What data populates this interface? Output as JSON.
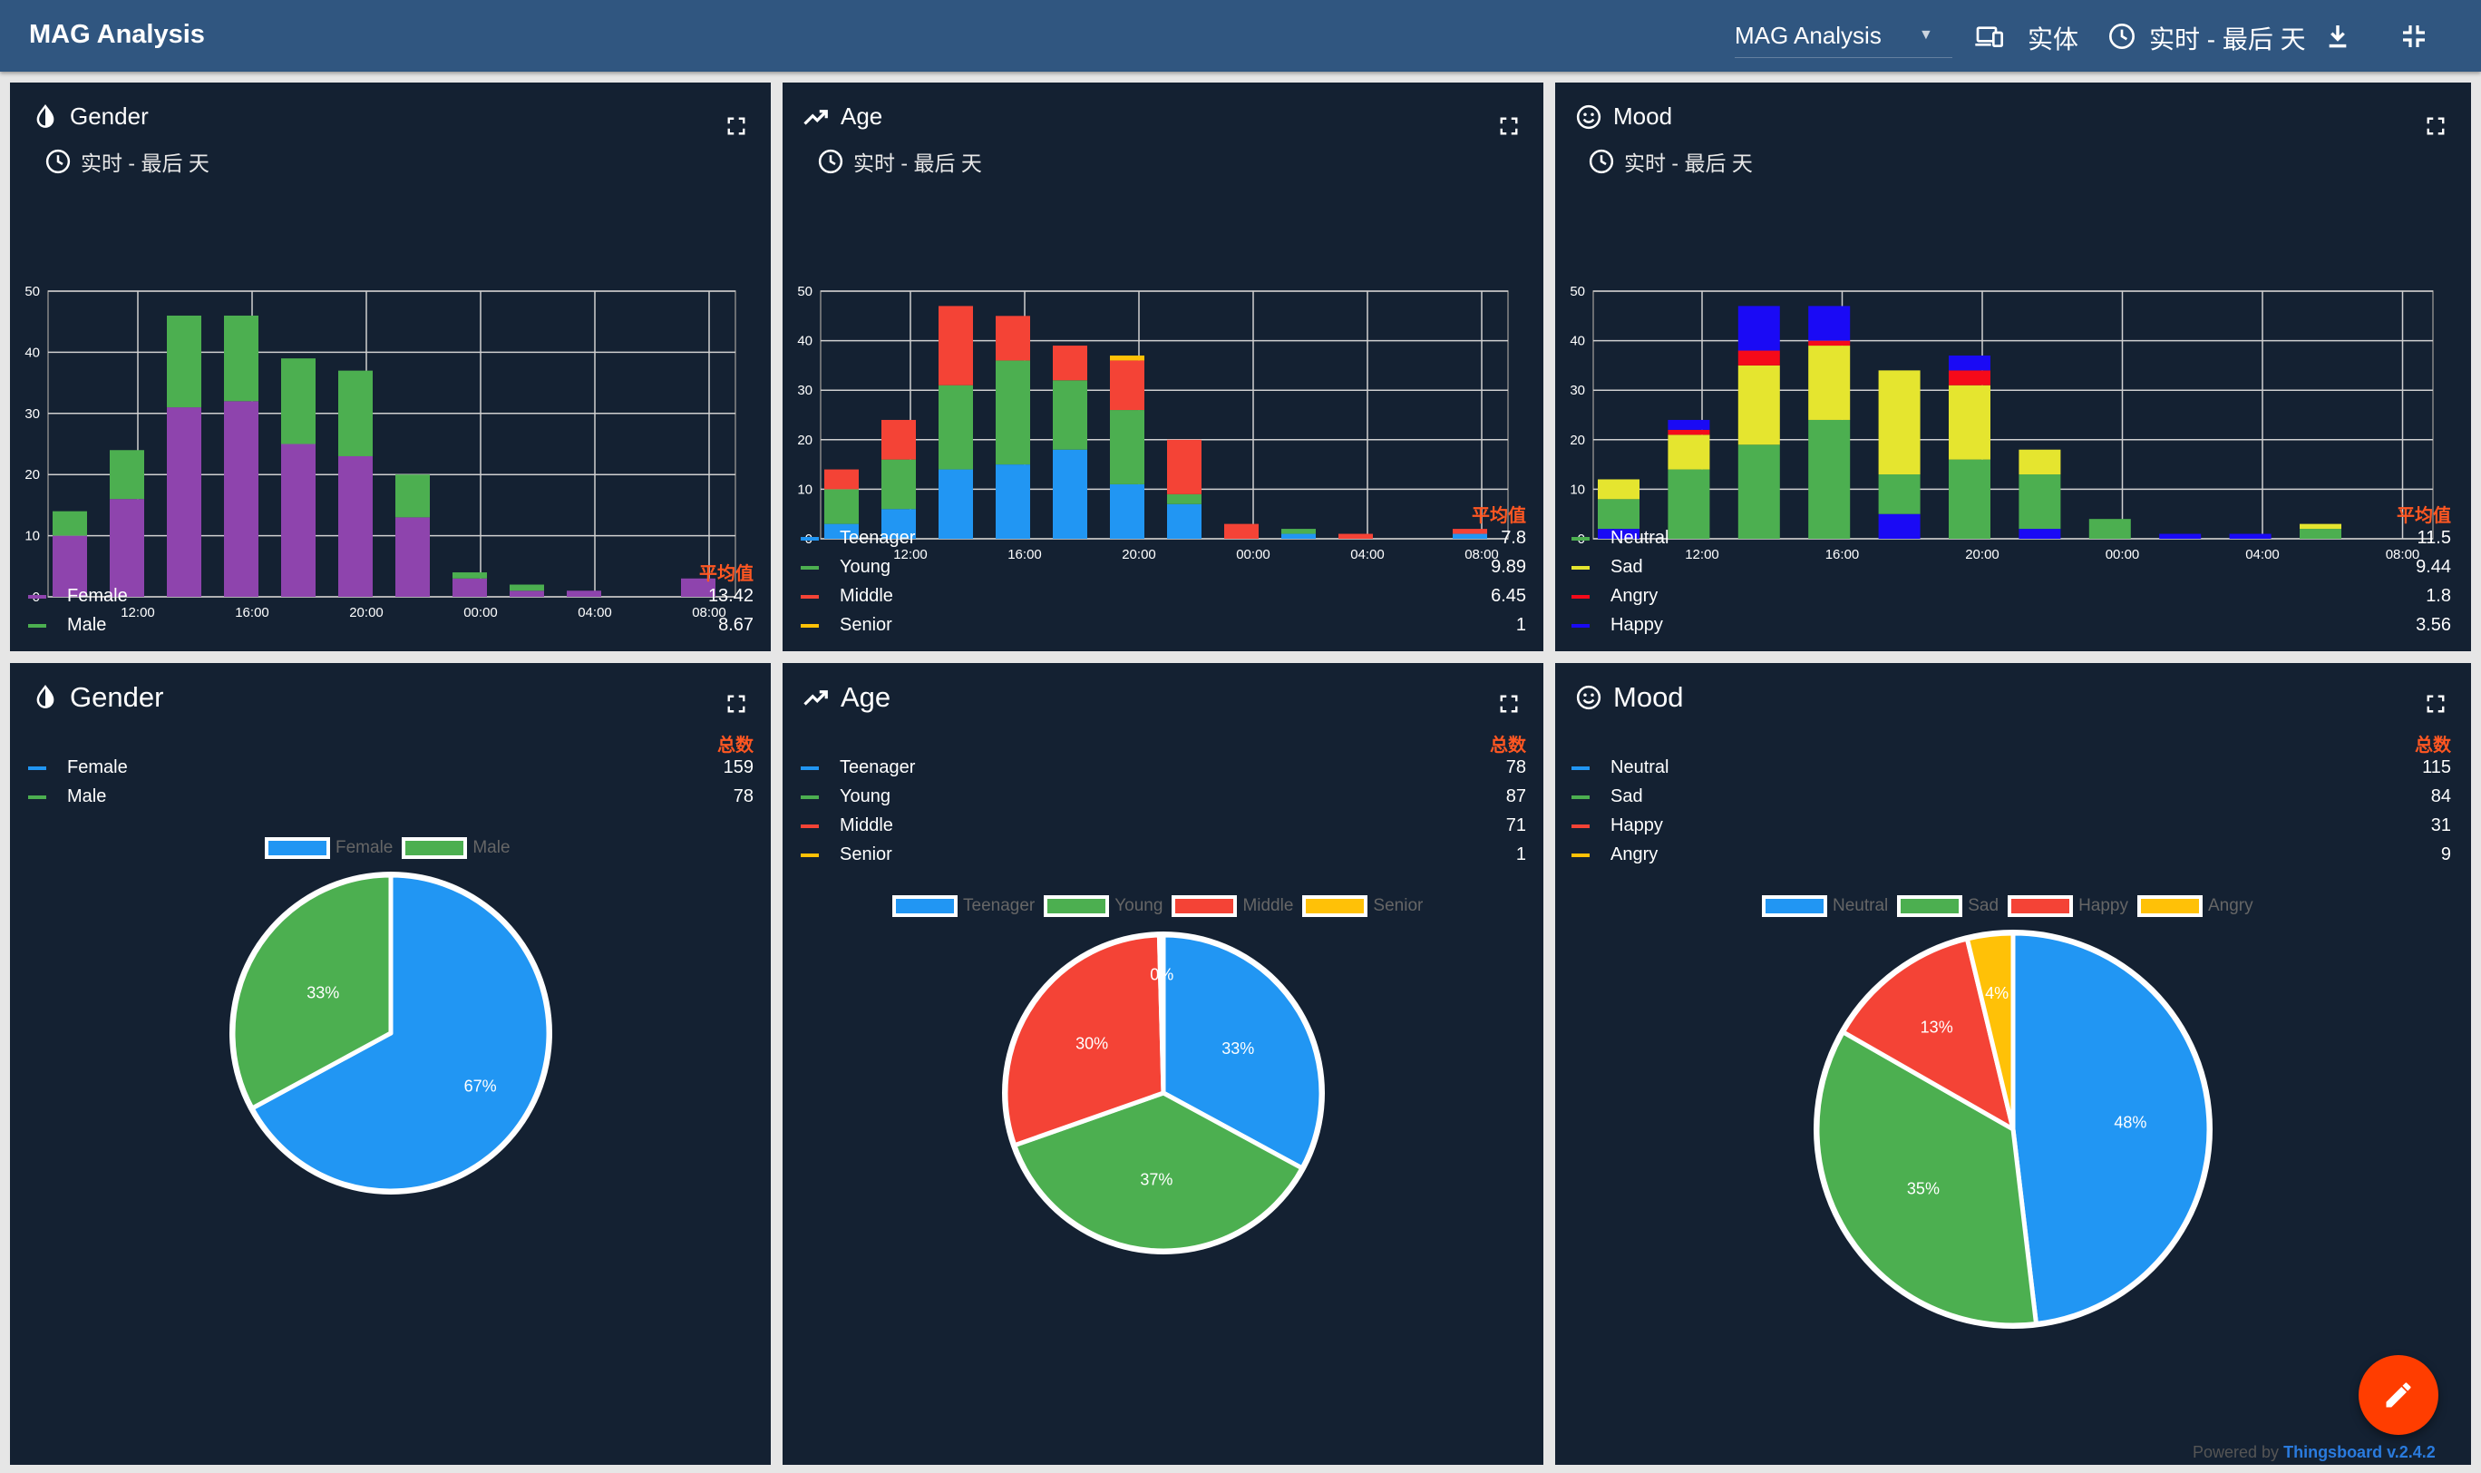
{
  "topbar": {
    "app_title": "MAG Analysis",
    "dashboard_select": "MAG Analysis",
    "entity_label": "实体",
    "timewindow_label": "实时 - 最后 天"
  },
  "widgets": {
    "gender_bar": {
      "title": "Gender",
      "timewindow": "实时 - 最后 天",
      "legend_header": "平均值",
      "legend": [
        {
          "label": "Female",
          "value": "13.42",
          "color": "#8e44ad"
        },
        {
          "label": "Male",
          "value": "8.67",
          "color": "#4caf50"
        }
      ]
    },
    "age_bar": {
      "title": "Age",
      "timewindow": "实时 - 最后 天",
      "legend_header": "平均值",
      "legend": [
        {
          "label": "Teenager",
          "value": "7.8",
          "color": "#2196f3"
        },
        {
          "label": "Young",
          "value": "9.89",
          "color": "#4caf50"
        },
        {
          "label": "Middle",
          "value": "6.45",
          "color": "#f44336"
        },
        {
          "label": "Senior",
          "value": "1",
          "color": "#ffc107"
        }
      ]
    },
    "mood_bar": {
      "title": "Mood",
      "timewindow": "实时 - 最后 天",
      "legend_header": "平均值",
      "legend": [
        {
          "label": "Neutral",
          "value": "11.5",
          "color": "#4caf50"
        },
        {
          "label": "Sad",
          "value": "9.44",
          "color": "#e5e52f"
        },
        {
          "label": "Angry",
          "value": "1.8",
          "color": "#f50a1a"
        },
        {
          "label": "Happy",
          "value": "3.56",
          "color": "#1a0af5"
        }
      ]
    },
    "gender_pie": {
      "title": "Gender",
      "legend_header": "总数",
      "legend": [
        {
          "label": "Female",
          "value": "159",
          "color": "#2196f3"
        },
        {
          "label": "Male",
          "value": "78",
          "color": "#4caf50"
        }
      ]
    },
    "age_pie": {
      "title": "Age",
      "legend_header": "总数",
      "legend": [
        {
          "label": "Teenager",
          "value": "78",
          "color": "#2196f3"
        },
        {
          "label": "Young",
          "value": "87",
          "color": "#4caf50"
        },
        {
          "label": "Middle",
          "value": "71",
          "color": "#f44336"
        },
        {
          "label": "Senior",
          "value": "1",
          "color": "#ffc107"
        }
      ]
    },
    "mood_pie": {
      "title": "Mood",
      "legend_header": "总数",
      "legend": [
        {
          "label": "Neutral",
          "value": "115",
          "color": "#2196f3"
        },
        {
          "label": "Sad",
          "value": "84",
          "color": "#4caf50"
        },
        {
          "label": "Happy",
          "value": "31",
          "color": "#f44336"
        },
        {
          "label": "Angry",
          "value": "9",
          "color": "#ffc107"
        }
      ]
    }
  },
  "footer": {
    "powered_prefix": "Powered by",
    "brand": "Thingsboard v.2.4.2"
  },
  "chart_data": [
    {
      "type": "bar",
      "title": "Gender",
      "stacked": true,
      "ylim": [
        0,
        50
      ],
      "yticks": [
        0,
        10,
        20,
        30,
        40,
        50
      ],
      "xticks": [
        "12:00",
        "16:00",
        "20:00",
        "00:00",
        "04:00",
        "08:00"
      ],
      "grid": true,
      "series": [
        {
          "name": "Female",
          "color": "#8e44ad",
          "values": [
            10,
            16,
            31,
            32,
            25,
            23,
            13,
            3,
            1,
            1,
            0,
            3
          ]
        },
        {
          "name": "Male",
          "color": "#4caf50",
          "values": [
            4,
            8,
            15,
            14,
            14,
            14,
            7,
            1,
            1,
            0,
            0,
            0
          ]
        }
      ]
    },
    {
      "type": "bar",
      "title": "Age",
      "stacked": true,
      "ylim": [
        0,
        50
      ],
      "yticks": [
        0,
        10,
        20,
        30,
        40,
        50
      ],
      "xticks": [
        "12:00",
        "16:00",
        "20:00",
        "00:00",
        "04:00",
        "08:00"
      ],
      "grid": true,
      "series": [
        {
          "name": "Teenager",
          "color": "#2196f3",
          "values": [
            3,
            6,
            14,
            15,
            18,
            11,
            7,
            0,
            1,
            0,
            0,
            1
          ]
        },
        {
          "name": "Young",
          "color": "#4caf50",
          "values": [
            7,
            10,
            17,
            21,
            14,
            15,
            2,
            0,
            1,
            0,
            0,
            0
          ]
        },
        {
          "name": "Middle",
          "color": "#f44336",
          "values": [
            4,
            8,
            16,
            9,
            7,
            10,
            11,
            3,
            0,
            1,
            0,
            1
          ]
        },
        {
          "name": "Senior",
          "color": "#ffc107",
          "values": [
            0,
            0,
            0,
            0,
            0,
            1,
            0,
            0,
            0,
            0,
            0,
            0
          ]
        }
      ]
    },
    {
      "type": "bar",
      "title": "Mood",
      "stacked": true,
      "ylim": [
        0,
        50
      ],
      "yticks": [
        0,
        10,
        20,
        30,
        40,
        50
      ],
      "xticks": [
        "12:00",
        "16:00",
        "20:00",
        "00:00",
        "04:00",
        "08:00"
      ],
      "grid": true,
      "series": [
        {
          "name": "Happy",
          "color": "#1a0af5",
          "values": [
            2,
            0,
            0,
            0,
            5,
            0,
            2,
            0,
            1,
            1,
            0
          ]
        },
        {
          "name": "Neutral",
          "color": "#4caf50",
          "values": [
            6,
            14,
            19,
            24,
            8,
            16,
            11,
            4,
            0,
            0,
            2
          ]
        },
        {
          "name": "Sad",
          "color": "#e5e52f",
          "values": [
            4,
            7,
            16,
            15,
            21,
            15,
            5,
            0,
            0,
            0,
            1
          ]
        },
        {
          "name": "Angry",
          "color": "#f50a1a",
          "values": [
            0,
            1,
            3,
            1,
            0,
            3,
            0,
            0,
            0,
            0,
            0
          ]
        },
        {
          "name": "Happy",
          "color": "#1a0af5",
          "values": [
            0,
            2,
            9,
            7,
            0,
            3,
            0,
            0,
            0,
            0,
            0
          ]
        }
      ]
    },
    {
      "type": "pie",
      "title": "Gender",
      "labels": [
        "Female",
        "Male"
      ],
      "values": [
        159,
        78
      ],
      "colors": [
        "#2196f3",
        "#4caf50"
      ],
      "percent_labels": [
        "67%",
        "33%"
      ]
    },
    {
      "type": "pie",
      "title": "Age",
      "labels": [
        "Teenager",
        "Young",
        "Middle",
        "Senior"
      ],
      "values": [
        78,
        87,
        71,
        1
      ],
      "colors": [
        "#2196f3",
        "#4caf50",
        "#f44336",
        "#ffc107"
      ],
      "percent_labels": [
        "33%",
        "37%",
        "30%",
        "0%"
      ]
    },
    {
      "type": "pie",
      "title": "Mood",
      "labels": [
        "Neutral",
        "Sad",
        "Happy",
        "Angry"
      ],
      "values": [
        115,
        84,
        31,
        9
      ],
      "colors": [
        "#2196f3",
        "#4caf50",
        "#f44336",
        "#ffc107"
      ],
      "percent_labels": [
        "48%",
        "35%",
        "13%",
        "4%"
      ]
    }
  ]
}
